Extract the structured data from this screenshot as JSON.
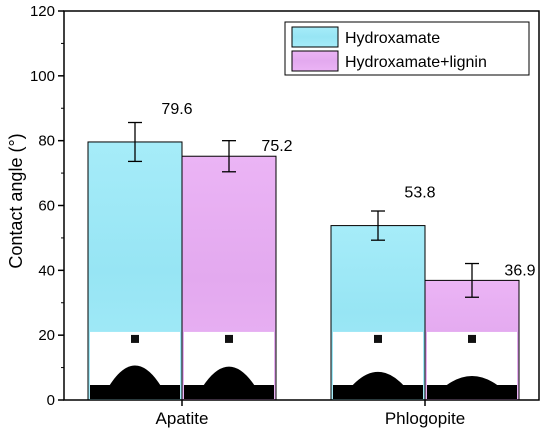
{
  "chart_data": {
    "type": "bar",
    "title": "",
    "xlabel": "",
    "ylabel": "Contact angle (°)",
    "ylim": [
      0,
      120
    ],
    "yticks": [
      "0",
      "20",
      "40",
      "60",
      "80",
      "100",
      "120"
    ],
    "categories": [
      "Apatite",
      "Phlogopite"
    ],
    "series": [
      {
        "name": "Hydroxamate",
        "values": [
          79.6,
          53.8
        ],
        "errors": [
          6.0,
          4.5
        ],
        "labels": [
          "79.6",
          "53.8"
        ],
        "color": "#a6ecf9"
      },
      {
        "name": "Hydroxamate+lignin",
        "values": [
          75.2,
          36.9
        ],
        "errors": [
          4.8,
          5.2
        ],
        "labels": [
          "75.2",
          "36.9"
        ],
        "color": "#ebb4f5"
      }
    ],
    "legend_position": "top-right",
    "inset_images": "droplet photographs at base of each bar"
  }
}
